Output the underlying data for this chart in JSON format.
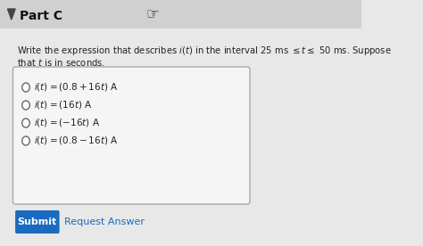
{
  "background_color": "#e8e8e8",
  "header_bg": "#d0d0d0",
  "part_label": "Part C",
  "cursor_symbol": "☞",
  "question_line1": "Write the expression that describes $i(t)$ in the interval 25 ms $\\leq t \\leq$ 50 ms. Suppose",
  "question_line2": "that $t$ is in seconds.",
  "options": [
    "$i(t) = (0.8 + 16t)$ A",
    "$i(t) = (16t)$ A",
    "$i(t) = (-16t)$ A",
    "$i(t) = (0.8 - 16t)$ A"
  ],
  "submit_label": "Submit",
  "request_label": "Request Answer",
  "submit_bg": "#1a6bbf",
  "submit_text_color": "#ffffff",
  "request_text_color": "#1a6bbf",
  "box_bg": "#f5f5f5",
  "box_border": "#aaaaaa",
  "text_color": "#222222",
  "header_text_color": "#111111",
  "triangle_color": "#444444"
}
